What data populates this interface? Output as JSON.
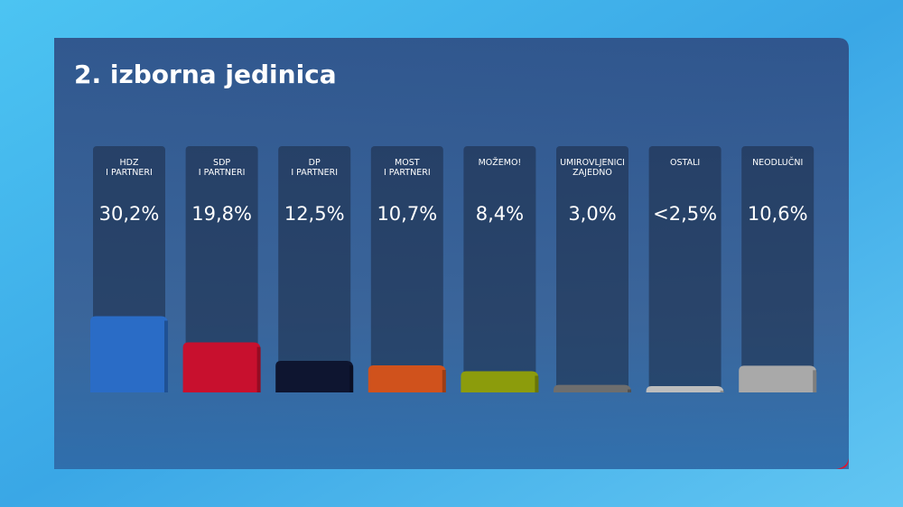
{
  "chart_data": {
    "type": "bar",
    "title": "2. izborna jedinica",
    "categories": [
      [
        "HDZ",
        "I PARTNERI"
      ],
      [
        "SDP",
        "I PARTNERI"
      ],
      [
        "DP",
        "I PARTNERI"
      ],
      [
        "MOST",
        "I PARTNERI"
      ],
      [
        "MOŽEMO!"
      ],
      [
        "UMIROVLJENICI",
        "ZAJEDNO"
      ],
      [
        "OSTALI"
      ],
      [
        "NEODLUČNI"
      ]
    ],
    "values": [
      30.2,
      19.8,
      12.5,
      10.7,
      8.4,
      3.0,
      2.5,
      10.6
    ],
    "value_labels": [
      "30,2%",
      "19,8%",
      "12,5%",
      "10,7%",
      "8,4%",
      "3,0%",
      "<2,5%",
      "10,6%"
    ],
    "colors": [
      "#2a6cc6",
      "#c8102e",
      "#0e1530",
      "#d0521c",
      "#8c9c0c",
      "#6e6e6e",
      "#bdbdbd",
      "#a9a9a9"
    ]
  }
}
